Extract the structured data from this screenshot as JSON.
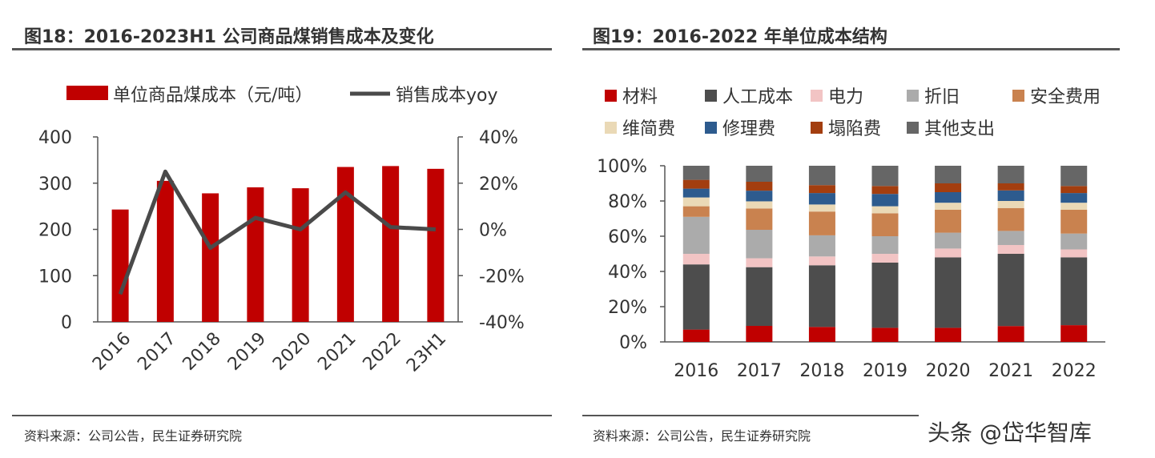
{
  "left_title": "图18：2016-2023H1 公司商品煤销售成本及变化",
  "right_title": "图19：2016-2022 年单位成本结构",
  "left_source": "资料来源：公司公告，民生证券研究院",
  "right_source": "资料来源：公司公告，民生证券研究院",
  "watermark": "头条 @岱华智库",
  "colors": {
    "bar": "#C00000",
    "line": "#4A4A4A",
    "axis": "#555555"
  },
  "chart_data": [
    {
      "type": "bar+line",
      "categories": [
        "2016",
        "2017",
        "2018",
        "2019",
        "2020",
        "2021",
        "2022",
        "23H1"
      ],
      "series": [
        {
          "name": "单位商品煤成本（元/吨）",
          "type": "bar",
          "axis": "left",
          "values": [
            243,
            305,
            278,
            291,
            289,
            335,
            337,
            331
          ]
        },
        {
          "name": "销售成本yoy",
          "type": "line",
          "axis": "right",
          "values": [
            -28,
            25,
            -8,
            5,
            0,
            16,
            1,
            0
          ]
        }
      ],
      "left_axis": {
        "ylim": [
          0,
          400
        ],
        "ticks": [
          "0",
          "100",
          "200",
          "300",
          "400"
        ]
      },
      "right_axis": {
        "ylim": [
          -40,
          40
        ],
        "ticks": [
          "-40%",
          "-20%",
          "0%",
          "20%",
          "40%"
        ]
      },
      "legend_position": "top"
    },
    {
      "type": "stacked_bar",
      "categories": [
        "2016",
        "2017",
        "2018",
        "2019",
        "2020",
        "2021",
        "2022"
      ],
      "series": [
        {
          "name": "材料",
          "color": "#C00000",
          "values": [
            7,
            9,
            8.5,
            8,
            8,
            9,
            9.5
          ]
        },
        {
          "name": "人工成本",
          "color": "#4D4D4D",
          "values": [
            37,
            33,
            35,
            37,
            40,
            41,
            38.5
          ]
        },
        {
          "name": "电力",
          "color": "#F2C4C4",
          "values": [
            6,
            5,
            5,
            5,
            5,
            5,
            4.5
          ]
        },
        {
          "name": "折旧",
          "color": "#ABABAB",
          "values": [
            21,
            16,
            12,
            10,
            9,
            8,
            9
          ]
        },
        {
          "name": "安全费用",
          "color": "#C9824F",
          "values": [
            6,
            12,
            13.5,
            13,
            13,
            13,
            13.5
          ]
        },
        {
          "name": "维简费",
          "color": "#EAD9B6",
          "values": [
            5,
            4,
            4,
            4,
            4,
            4,
            4
          ]
        },
        {
          "name": "修理费",
          "color": "#2D5B8E",
          "values": [
            5,
            6,
            6.5,
            7,
            6,
            6,
            5.5
          ]
        },
        {
          "name": "塌陷费",
          "color": "#A33E0F",
          "values": [
            5,
            5,
            4.5,
            4.5,
            5,
            4,
            4
          ]
        },
        {
          "name": "其他支出",
          "color": "#666666",
          "values": [
            8,
            9,
            11,
            11.5,
            10,
            10,
            11.5
          ]
        }
      ],
      "y_axis": {
        "ylim": [
          0,
          100
        ],
        "ticks": [
          "0%",
          "20%",
          "40%",
          "60%",
          "80%",
          "100%"
        ]
      },
      "legend_position": "top"
    }
  ]
}
